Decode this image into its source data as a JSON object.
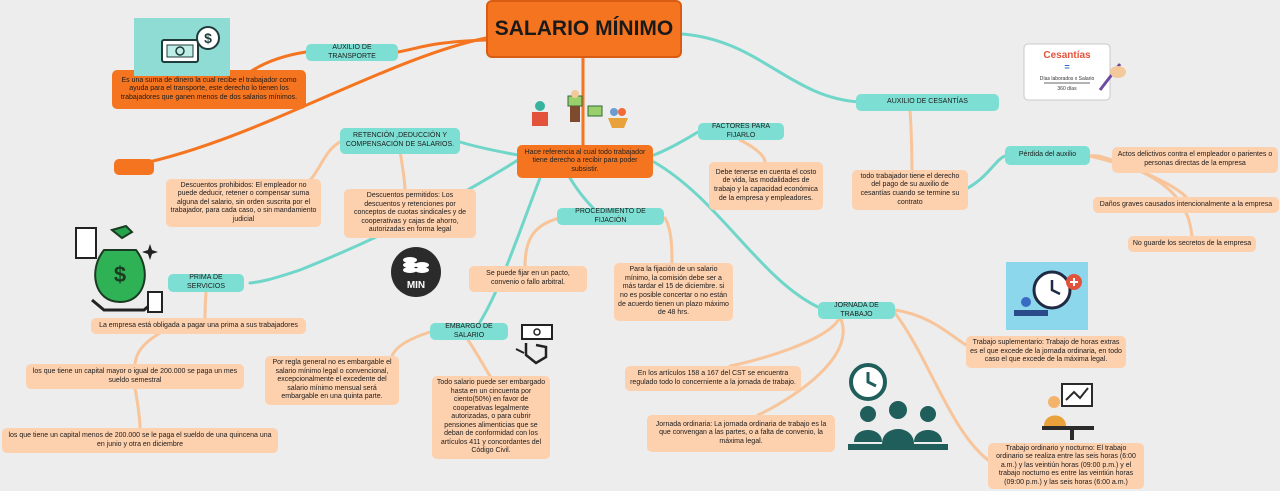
{
  "title": "SALARIO MÍNIMO",
  "center_text": "Hace referencia al cual todo trabajador tiene derecho a recibir para poder subsistir.",
  "auxilio_transporte": {
    "label": "AUXILIO DE TRANSPORTE",
    "description": "Es una suma de dinero la cual recibe el trabajador como ayuda para el transporte, este derecho lo tienen los trabajadores que ganen menos de dos salarios mínimos."
  },
  "retencion": {
    "label": "RETENCIÓN ,DEDUCCIÓN Y COMPENSACIÓN DE SALARIOS.",
    "prohibidos": "Descuentos prohibidos: El empleador no puede deducir, retener o compensar suma alguna del salario, sin orden suscrita por el trabajador, para cada caso, o sin mandamiento judicial",
    "permitidos": "Descuentos permitidos: Los descuentos y retenciones por conceptos de cuotas sindicales y de cooperativas y cajas de ahorro, autorizadas en forma legal"
  },
  "prima_servicios": {
    "label": "PRIMA DE SERVICIOS",
    "obligada": "La empresa está obligada a pagar una prima a sus trabajadores",
    "mayor": "los que tiene un capital mayor o igual de 200.000 se paga un mes sueldo semestral",
    "menor": "los que tiene un capital menos de 200.000 se le paga el sueldo de una quincena una en junio y otra en diciembre"
  },
  "embargo": {
    "label": "EMBARGO DE SALARIO",
    "regla": "Por regla general no es embargable el salario mínimo legal o convencional, excepcionalmente el excedente del salario mínimo mensual será embargable en una quinta parte.",
    "todo": "Todo salario puede ser embargado hasta en un cincuenta por ciento(50%) en favor de cooperativas legalmente autorizadas, o para cubrir pensiones alimenticias que se deban de conformidad con los artículos 411 y concordantes del Código Civil."
  },
  "procedimiento": {
    "label": "PROCEDIMIENTO DE FIJACIÓN",
    "pacto": "Se puede fijar en un pacto, convenio o fallo arbitral.",
    "fijacion": "Para la fijación de un salario mínimo, la comisión debe ser a más tardar el 15 de diciembre. si no es posible concertar o no están de acuerdo tienen un plazo máximo de 48 hrs."
  },
  "factores": {
    "label": "FACTORES PARA FIJARLO",
    "description": "Debe tenerse en cuenta el costo de vida, las modalidades de trabajo y la capacidad económica de la empresa y empleadores."
  },
  "cesantias": {
    "label": "AUXILIO DE CESANTÍAS",
    "description": "todo trabajador tiene el derecho del pago de su auxilio de cesantías cuando se termine su contrato",
    "perdida": "Pérdida del auxilio",
    "actos": "Actos delictivos contra el empleador o parientes o personas directas de la empresa",
    "danos": "Daños graves causados intencionalmente a la empresa",
    "secretos": "No guarde los secretos de la empresa",
    "card_title": "Cesantías",
    "card_formula": "Días laborados x Salario",
    "card_divisor": "360 días"
  },
  "jornada": {
    "label": "JORNADA DE TRABAJO",
    "articulos": "En los artículos 158 a 167 del CST se encuentra regulado todo lo concerniente a la jornada de trabajo.",
    "ordinaria": "Jornada ordinaria: La jornada ordinaria de trabajo es la que convengan a las partes, o a falta de convenio, la máxima legal.",
    "suplementario": "Trabajo suplementario: Trabajo de horas extras es el que excede de la jornada ordinaria, en todo caso el que excede de la máxima legal.",
    "nocturno": "Trabajo ordinario y nocturno: El trabajo ordinario se realiza entre las seis horas (6:00 a.m.) y las veintiún horas (09:00 p.m.) y el trabajo nocturno es entre las veintiún horas (09:00 p.m.) y las seis horas (6:00 a.m.)"
  },
  "min_badge": "MIN",
  "colors": {
    "background": "#ecedec",
    "orange": "#f5741f",
    "teal": "#7ddfd3",
    "peach": "#fdd0ae",
    "link_orange": "#f5741f",
    "link_teal": "#6fd6c9",
    "link_peach": "#f8c49a"
  },
  "icons": [
    "money-bill-icon",
    "money-bag-hand-icon",
    "coin-stack-icon",
    "hand-cash-icon",
    "clock-icon",
    "clock-worker-icon",
    "team-clock-icon",
    "night-worker-icon",
    "cesantias-card-icon",
    "people-money-icon"
  ]
}
